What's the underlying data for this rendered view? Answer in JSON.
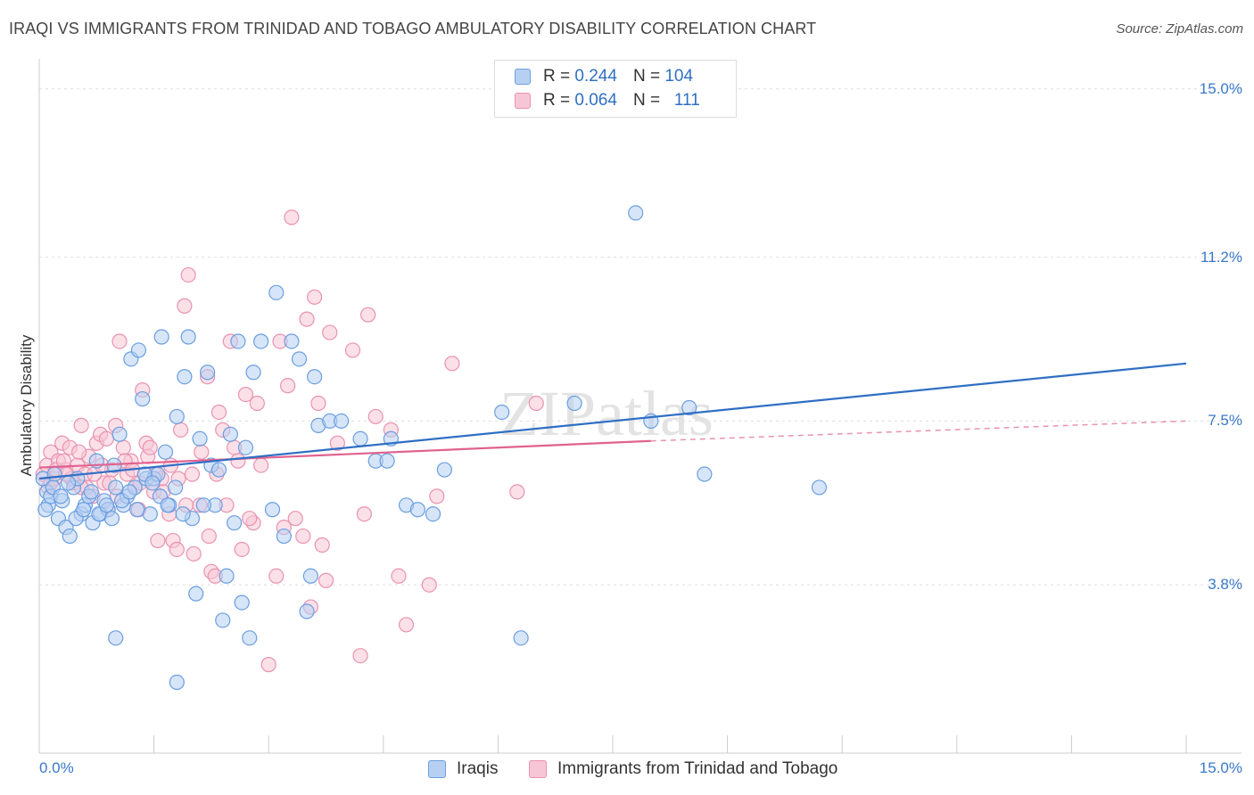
{
  "chart_data": {
    "type": "scatter",
    "title": "IRAQI VS IMMIGRANTS FROM TRINIDAD AND TOBAGO AMBULATORY DISABILITY CORRELATION CHART",
    "source": "Source: ZipAtlas.com",
    "xlabel": "",
    "ylabel": "Ambulatory Disability",
    "xlim": [
      0,
      15
    ],
    "ylim": [
      0,
      15.6
    ],
    "x_tick_labels": [
      "0.0%",
      "15.0%"
    ],
    "y_ticks": [
      {
        "value": 3.8,
        "label": "3.8%"
      },
      {
        "value": 7.5,
        "label": "7.5%"
      },
      {
        "value": 11.2,
        "label": "11.2%"
      },
      {
        "value": 15.0,
        "label": "15.0%"
      }
    ],
    "legend_position": "top-center",
    "watermark": "ZIPatlas",
    "series": [
      {
        "name": "Iraqis",
        "color": "#6a9ee0",
        "fill": "#b7d0f2",
        "r_label": "R =",
        "r_value": "0.244",
        "n_label": "N =",
        "n_value": "104",
        "trend": {
          "x0": 0,
          "y0": 6.2,
          "x1": 15,
          "y1": 8.8
        },
        "points": [
          [
            0.05,
            6.2
          ],
          [
            0.1,
            5.9
          ],
          [
            0.12,
            5.6
          ],
          [
            0.15,
            5.8
          ],
          [
            0.2,
            6.3
          ],
          [
            0.25,
            5.3
          ],
          [
            0.3,
            5.7
          ],
          [
            0.35,
            5.1
          ],
          [
            0.4,
            4.9
          ],
          [
            0.45,
            6.0
          ],
          [
            0.5,
            6.2
          ],
          [
            0.55,
            5.4
          ],
          [
            0.6,
            5.6
          ],
          [
            0.65,
            5.8
          ],
          [
            0.7,
            5.2
          ],
          [
            0.75,
            6.6
          ],
          [
            0.8,
            5.4
          ],
          [
            0.85,
            5.7
          ],
          [
            0.9,
            5.5
          ],
          [
            0.95,
            5.3
          ],
          [
            1.0,
            6.0
          ],
          [
            1.05,
            7.2
          ],
          [
            1.1,
            5.6
          ],
          [
            1.15,
            5.8
          ],
          [
            1.2,
            8.9
          ],
          [
            1.25,
            6.0
          ],
          [
            1.3,
            9.1
          ],
          [
            1.35,
            8.0
          ],
          [
            1.4,
            6.2
          ],
          [
            1.45,
            5.4
          ],
          [
            1.5,
            6.2
          ],
          [
            1.55,
            6.3
          ],
          [
            1.6,
            9.4
          ],
          [
            1.65,
            6.8
          ],
          [
            1.7,
            5.6
          ],
          [
            1.8,
            7.6
          ],
          [
            1.9,
            8.5
          ],
          [
            1.95,
            9.4
          ],
          [
            2.0,
            5.3
          ],
          [
            2.05,
            3.6
          ],
          [
            2.1,
            7.1
          ],
          [
            2.2,
            8.6
          ],
          [
            2.25,
            6.5
          ],
          [
            2.3,
            5.6
          ],
          [
            2.35,
            6.4
          ],
          [
            2.4,
            3.0
          ],
          [
            2.45,
            4.0
          ],
          [
            2.5,
            7.2
          ],
          [
            2.6,
            9.3
          ],
          [
            2.65,
            3.4
          ],
          [
            2.7,
            6.9
          ],
          [
            2.75,
            2.6
          ],
          [
            2.8,
            8.6
          ],
          [
            2.9,
            9.3
          ],
          [
            3.05,
            5.5
          ],
          [
            3.1,
            10.4
          ],
          [
            3.2,
            4.9
          ],
          [
            3.3,
            9.3
          ],
          [
            3.4,
            8.9
          ],
          [
            3.5,
            3.2
          ],
          [
            3.55,
            4.0
          ],
          [
            3.6,
            8.5
          ],
          [
            3.65,
            7.4
          ],
          [
            3.8,
            7.5
          ],
          [
            3.95,
            7.5
          ],
          [
            4.2,
            7.1
          ],
          [
            4.4,
            6.6
          ],
          [
            4.55,
            6.6
          ],
          [
            4.6,
            7.1
          ],
          [
            4.8,
            5.6
          ],
          [
            4.95,
            5.5
          ],
          [
            5.15,
            5.4
          ],
          [
            5.3,
            6.4
          ],
          [
            6.05,
            7.7
          ],
          [
            6.3,
            2.6
          ],
          [
            7.0,
            7.9
          ],
          [
            7.8,
            12.2
          ],
          [
            8.0,
            7.5
          ],
          [
            8.5,
            7.8
          ],
          [
            8.7,
            6.3
          ],
          [
            10.2,
            6.0
          ],
          [
            0.08,
            5.5
          ],
          [
            0.18,
            6.0
          ],
          [
            0.28,
            5.8
          ],
          [
            0.38,
            6.1
          ],
          [
            0.48,
            5.3
          ],
          [
            0.58,
            5.5
          ],
          [
            0.68,
            5.9
          ],
          [
            0.78,
            5.4
          ],
          [
            0.88,
            5.6
          ],
          [
            0.98,
            6.5
          ],
          [
            1.08,
            5.7
          ],
          [
            1.18,
            5.9
          ],
          [
            1.28,
            5.5
          ],
          [
            1.38,
            6.3
          ],
          [
            1.48,
            6.1
          ],
          [
            1.58,
            5.8
          ],
          [
            1.68,
            5.6
          ],
          [
            1.78,
            6.0
          ],
          [
            1.88,
            5.4
          ],
          [
            2.15,
            5.6
          ],
          [
            1.0,
            2.6
          ],
          [
            1.8,
            1.6
          ],
          [
            2.55,
            5.2
          ]
        ]
      },
      {
        "name": "Immigrants from Trinidad and Tobago",
        "color": "#e992b0",
        "fill": "#f7c6d6",
        "r_label": "R =",
        "r_value": "0.064",
        "n_label": "N =",
        "n_value": "111",
        "trend": {
          "x0": 0,
          "y0": 6.45,
          "x1": 8.0,
          "y1": 7.05
        },
        "trend_dashed": {
          "x0": 8.0,
          "y0": 7.05,
          "x1": 15,
          "y1": 7.5
        },
        "points": [
          [
            0.05,
            6.3
          ],
          [
            0.1,
            6.5
          ],
          [
            0.15,
            6.8
          ],
          [
            0.2,
            6.2
          ],
          [
            0.25,
            6.6
          ],
          [
            0.3,
            7.0
          ],
          [
            0.35,
            6.4
          ],
          [
            0.4,
            6.9
          ],
          [
            0.45,
            6.1
          ],
          [
            0.5,
            6.5
          ],
          [
            0.55,
            7.4
          ],
          [
            0.6,
            6.3
          ],
          [
            0.65,
            6.7
          ],
          [
            0.7,
            5.8
          ],
          [
            0.75,
            7.0
          ],
          [
            0.8,
            7.2
          ],
          [
            0.85,
            6.1
          ],
          [
            0.9,
            5.5
          ],
          [
            0.95,
            6.4
          ],
          [
            1.0,
            7.4
          ],
          [
            1.05,
            9.3
          ],
          [
            1.1,
            6.9
          ],
          [
            1.15,
            6.3
          ],
          [
            1.2,
            6.6
          ],
          [
            1.25,
            6.0
          ],
          [
            1.3,
            5.5
          ],
          [
            1.35,
            8.2
          ],
          [
            1.4,
            7.0
          ],
          [
            1.5,
            5.9
          ],
          [
            1.55,
            4.8
          ],
          [
            1.6,
            6.2
          ],
          [
            1.7,
            5.4
          ],
          [
            1.75,
            4.8
          ],
          [
            1.8,
            4.6
          ],
          [
            1.85,
            7.3
          ],
          [
            1.9,
            10.1
          ],
          [
            1.95,
            10.8
          ],
          [
            2.0,
            6.3
          ],
          [
            2.1,
            5.6
          ],
          [
            2.2,
            8.5
          ],
          [
            2.25,
            4.1
          ],
          [
            2.3,
            4.0
          ],
          [
            2.35,
            7.7
          ],
          [
            2.4,
            7.3
          ],
          [
            2.5,
            9.3
          ],
          [
            2.55,
            6.9
          ],
          [
            2.6,
            6.6
          ],
          [
            2.65,
            4.6
          ],
          [
            2.7,
            8.1
          ],
          [
            2.8,
            5.2
          ],
          [
            2.85,
            7.9
          ],
          [
            2.9,
            6.5
          ],
          [
            3.1,
            4.0
          ],
          [
            3.15,
            9.3
          ],
          [
            3.2,
            5.1
          ],
          [
            3.3,
            12.1
          ],
          [
            3.35,
            5.3
          ],
          [
            3.5,
            9.8
          ],
          [
            3.6,
            10.3
          ],
          [
            3.65,
            7.9
          ],
          [
            3.7,
            4.7
          ],
          [
            3.75,
            3.9
          ],
          [
            3.8,
            9.5
          ],
          [
            3.9,
            7.0
          ],
          [
            4.1,
            9.1
          ],
          [
            4.2,
            2.2
          ],
          [
            4.25,
            5.4
          ],
          [
            4.3,
            9.9
          ],
          [
            4.4,
            7.6
          ],
          [
            4.6,
            7.3
          ],
          [
            4.7,
            4.0
          ],
          [
            4.8,
            2.9
          ],
          [
            5.1,
            3.8
          ],
          [
            5.2,
            5.8
          ],
          [
            5.4,
            8.8
          ],
          [
            6.25,
            5.9
          ],
          [
            6.5,
            7.9
          ],
          [
            3.0,
            2.0
          ],
          [
            0.12,
            6.0
          ],
          [
            0.22,
            6.4
          ],
          [
            0.32,
            6.6
          ],
          [
            0.42,
            6.2
          ],
          [
            0.52,
            6.8
          ],
          [
            0.62,
            6.0
          ],
          [
            0.72,
            6.3
          ],
          [
            0.82,
            6.5
          ],
          [
            0.92,
            6.1
          ],
          [
            1.02,
            5.8
          ],
          [
            1.12,
            6.6
          ],
          [
            1.22,
            6.4
          ],
          [
            1.32,
            6.1
          ],
          [
            1.42,
            6.7
          ],
          [
            1.52,
            6.3
          ],
          [
            1.62,
            5.9
          ],
          [
            1.72,
            6.5
          ],
          [
            1.82,
            6.2
          ],
          [
            1.92,
            5.6
          ],
          [
            2.02,
            4.5
          ],
          [
            2.12,
            6.8
          ],
          [
            2.22,
            4.9
          ],
          [
            2.32,
            6.3
          ],
          [
            3.25,
            8.3
          ],
          [
            3.45,
            4.9
          ],
          [
            3.55,
            3.3
          ],
          [
            1.45,
            6.9
          ],
          [
            0.88,
            7.1
          ],
          [
            2.45,
            5.6
          ],
          [
            2.75,
            5.3
          ],
          [
            0.15,
            6.1
          ],
          [
            0.35,
            6.3
          ],
          [
            0.55,
            6.0
          ]
        ]
      }
    ]
  }
}
